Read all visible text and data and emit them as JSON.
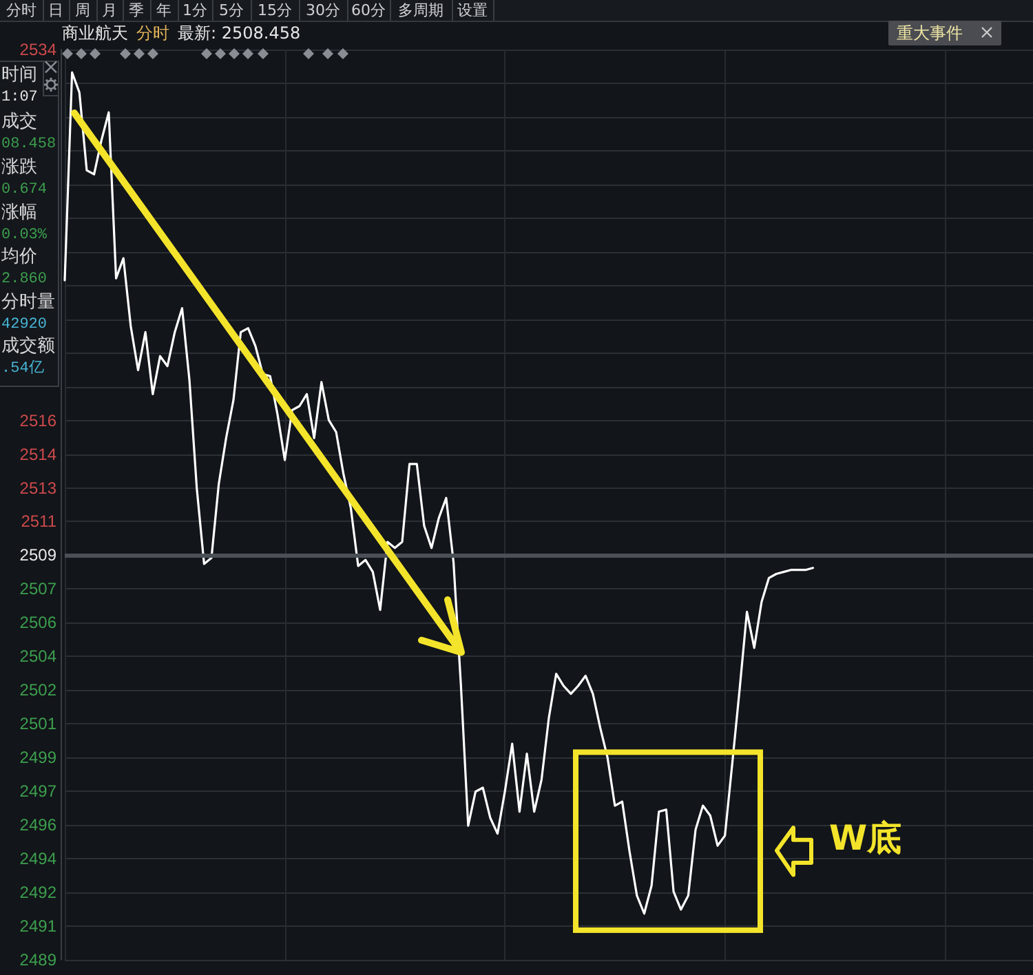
{
  "chart_data": {
    "type": "line",
    "title": "商业航天",
    "subtitle": "分时",
    "categories": [
      null,
      null,
      null,
      null,
      null,
      null,
      null,
      null,
      null,
      null,
      null,
      null,
      null,
      null,
      null,
      null,
      null,
      null,
      null,
      null,
      null,
      null,
      null,
      null,
      null,
      null,
      null,
      null,
      null,
      null,
      null,
      null,
      null,
      null,
      null,
      null,
      null,
      null,
      null,
      null,
      null,
      null,
      null,
      null,
      null,
      null,
      null,
      null,
      null,
      null,
      null,
      null,
      null,
      null,
      null,
      null,
      null,
      null,
      null,
      null,
      null,
      null,
      null,
      null,
      null,
      null,
      null,
      null,
      null,
      null,
      null,
      null,
      null,
      null,
      null,
      null,
      null,
      null,
      null,
      null,
      null,
      null,
      null,
      null,
      null,
      null,
      null,
      null,
      null,
      null,
      null,
      null,
      null,
      null,
      null,
      null,
      null,
      null,
      null,
      null,
      null,
      null,
      null,
      null,
      null,
      null,
      null,
      null,
      null,
      null,
      null,
      null,
      null,
      null,
      null,
      null,
      null,
      null,
      null,
      null,
      null,
      null,
      null,
      null,
      null,
      null,
      null,
      null,
      null,
      null,
      null,
      null,
      null
    ],
    "values": [
      2522.9,
      2533.3,
      2532.3,
      2528.4,
      2528.2,
      2529.9,
      2531.3,
      2523.0,
      2524.0,
      2520.6,
      2518.4,
      2520.3,
      2517.2,
      2519.1,
      2518.6,
      2520.3,
      2521.5,
      2517.9,
      2512.5,
      2508.7,
      2509.0,
      2512.7,
      2515.0,
      2516.9,
      2520.3,
      2520.5,
      2519.6,
      2518.2,
      2518.1,
      2516.2,
      2513.9,
      2516.4,
      2516.6,
      2517.2,
      2515.0,
      2517.8,
      2515.9,
      2515.3,
      2513.2,
      2511.5,
      2508.6,
      2508.9,
      2508.3,
      2506.4,
      2509.8,
      2509.5,
      2509.8,
      2513.7,
      2513.7,
      2510.6,
      2509.5,
      2511.0,
      2512.0,
      2508.8,
      2502.7,
      2495.6,
      2497.3,
      2497.5,
      2496.0,
      2495.2,
      2497.3,
      2499.7,
      2496.3,
      2499.2,
      2496.3,
      2497.9,
      2501.0,
      2503.2,
      2502.6,
      2502.2,
      2502.6,
      2503.1,
      2502.2,
      2500.5,
      2499.0,
      2496.6,
      2496.8,
      2494.3,
      2492.1,
      2491.2,
      2492.6,
      2496.3,
      2496.4,
      2492.3,
      2491.4,
      2492.1,
      2495.4,
      2496.6,
      2496.1,
      2494.6,
      2495.1,
      2498.7,
      2502.4,
      2506.3,
      2504.5,
      2506.8,
      2508.0,
      2508.2,
      2508.3,
      2508.4,
      2508.4,
      2508.4,
      2508.5,
      null,
      null,
      null,
      null,
      null,
      null,
      null,
      null,
      null,
      null,
      null,
      null,
      null,
      null,
      null,
      null,
      null,
      null,
      null,
      null,
      null,
      null,
      null,
      null,
      null,
      null,
      null,
      null,
      null,
      null
    ],
    "color": "#ffffff",
    "marker": "none",
    "grid": true,
    "tick_labels": "y",
    "ylim": [
      2488.882,
      2534.445
    ],
    "yticks": [
      {
        "value": 2488.882,
        "label": "2489"
      },
      {
        "value": 2490.57,
        "label": "2491"
      },
      {
        "value": 2492.257,
        "label": "2492"
      },
      {
        "value": 2493.945,
        "label": "2494"
      },
      {
        "value": 2495.632,
        "label": "2496"
      },
      {
        "value": 2497.32,
        "label": "2497"
      },
      {
        "value": 2499.007,
        "label": "2499"
      },
      {
        "value": 2500.695,
        "label": "2501"
      },
      {
        "value": 2502.382,
        "label": "2502"
      },
      {
        "value": 2504.07,
        "label": "2504"
      },
      {
        "value": 2505.757,
        "label": "2506"
      },
      {
        "value": 2507.445,
        "label": "2507"
      },
      {
        "value": 2509.132,
        "label": "2509"
      },
      {
        "value": 2510.82,
        "label": "2511"
      },
      {
        "value": 2512.507,
        "label": "2513"
      },
      {
        "value": 2514.195,
        "label": "2514"
      },
      {
        "value": 2515.882,
        "label": "2516"
      },
      {
        "value": 2517.57,
        "label": null
      },
      {
        "value": 2519.257,
        "label": null
      },
      {
        "value": 2520.945,
        "label": null
      },
      {
        "value": 2522.632,
        "label": null
      },
      {
        "value": 2524.32,
        "label": null
      },
      {
        "value": 2526.007,
        "label": null
      },
      {
        "value": 2527.695,
        "label": null
      },
      {
        "value": 2529.382,
        "label": null
      },
      {
        "value": 2531.07,
        "label": null
      },
      {
        "value": 2532.757,
        "label": null
      },
      {
        "value": 2534.445,
        "label": "2534"
      }
    ],
    "ref_lines": [
      {
        "axis": "y",
        "value": 2509.132,
        "color": "#4b5057"
      }
    ],
    "annotations": [
      "分时",
      "日",
      "周",
      "月",
      "季",
      "年",
      "1分",
      "5分",
      "15分",
      "30分",
      "60分",
      "多周期",
      "设置",
      "最新: 2508.458",
      "重大事件",
      "时间 1:07",
      "成交 08.458",
      "涨跌 0.674",
      "涨幅 0.03%",
      "均价 2.860",
      "分时量 42920",
      "成交额 .54亿",
      "W底"
    ]
  }
}
